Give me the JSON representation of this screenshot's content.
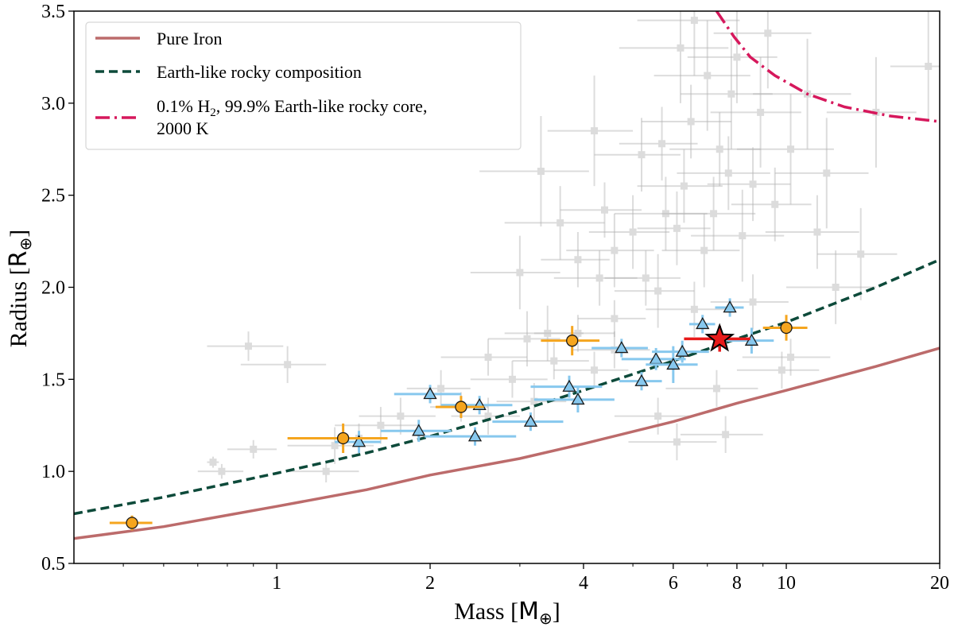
{
  "chart_data": {
    "type": "scatter",
    "title": "",
    "xlabel": "Mass",
    "xlabel_unit": "M",
    "ylabel": "Radius",
    "ylabel_unit": "R",
    "unit_symbol": "⊕",
    "xscale": "log",
    "xlim": [
      0.4,
      20
    ],
    "ylim": [
      0.5,
      3.5
    ],
    "x_ticks": [
      {
        "value": 1,
        "label": "1"
      },
      {
        "value": 2,
        "label": "2"
      },
      {
        "value": 4,
        "label": "4"
      },
      {
        "value": 6,
        "label": "6"
      },
      {
        "value": 8,
        "label": "8"
      },
      {
        "value": 10,
        "label": "10"
      },
      {
        "value": 20,
        "label": "20"
      }
    ],
    "y_ticks": [
      {
        "value": 0.5,
        "label": "0.5"
      },
      {
        "value": 1.0,
        "label": "1.0"
      },
      {
        "value": 1.5,
        "label": "1.5"
      },
      {
        "value": 2.0,
        "label": "2.0"
      },
      {
        "value": 2.5,
        "label": "2.5"
      },
      {
        "value": 3.0,
        "label": "3.0"
      },
      {
        "value": 3.5,
        "label": "3.5"
      }
    ],
    "legend": {
      "location": "upper-left",
      "entries": [
        {
          "label": "Pure Iron",
          "style": "solid",
          "color": "#bc6b6b"
        },
        {
          "label": "Earth-like rocky composition",
          "style": "dashed",
          "color": "#0d4a3a"
        },
        {
          "label": "0.1% H",
          "sub": "2",
          "label_rest": ", 99.9% Earth-like rocky core,",
          "label_line2": "2000 K",
          "style": "dashdot",
          "color": "#d6185c"
        }
      ]
    },
    "curves": {
      "pure_iron": {
        "color": "#bc6b6b",
        "x": [
          0.4,
          0.6,
          1,
          1.5,
          2,
          3,
          4,
          6,
          8,
          10,
          15,
          20
        ],
        "y": [
          0.635,
          0.7,
          0.81,
          0.9,
          0.98,
          1.07,
          1.15,
          1.27,
          1.37,
          1.44,
          1.57,
          1.67
        ]
      },
      "earth_like": {
        "color": "#0d4a3a",
        "x": [
          0.4,
          0.6,
          1,
          1.5,
          2,
          3,
          4,
          6,
          8,
          10,
          15,
          20
        ],
        "y": [
          0.77,
          0.86,
          0.99,
          1.1,
          1.19,
          1.33,
          1.44,
          1.6,
          1.72,
          1.81,
          2.0,
          2.15
        ]
      },
      "h2_envelope": {
        "color": "#d6185c",
        "x": [
          7.3,
          7.9,
          8.5,
          9.5,
          11,
          13,
          16,
          20
        ],
        "y": [
          3.5,
          3.36,
          3.25,
          3.15,
          3.05,
          2.98,
          2.93,
          2.9
        ]
      }
    },
    "background_planets": {
      "color": "#b3b3b3",
      "points": [
        [
          0.75,
          1.05,
          0.02,
          0.03
        ],
        [
          0.9,
          1.12,
          0.1,
          0.05
        ],
        [
          0.78,
          1.0,
          0.08,
          0.04
        ],
        [
          1.05,
          1.58,
          0.2,
          0.1
        ],
        [
          0.88,
          1.68,
          0.15,
          0.08
        ],
        [
          1.25,
          1.0,
          0.2,
          0.06
        ],
        [
          1.3,
          1.14,
          0.25,
          0.1
        ],
        [
          1.45,
          1.18,
          0.2,
          0.08
        ],
        [
          1.6,
          1.25,
          0.3,
          0.1
        ],
        [
          1.75,
          1.3,
          0.3,
          0.1
        ],
        [
          2.1,
          1.45,
          0.3,
          0.1
        ],
        [
          2.3,
          1.35,
          0.3,
          0.08
        ],
        [
          2.6,
          1.3,
          0.4,
          0.1
        ],
        [
          2.9,
          1.5,
          0.5,
          0.1
        ],
        [
          3.2,
          1.38,
          0.5,
          0.1
        ],
        [
          3.5,
          1.6,
          0.6,
          0.1
        ],
        [
          3.4,
          1.75,
          0.6,
          0.15
        ],
        [
          3.9,
          1.75,
          0.7,
          0.1
        ],
        [
          4.2,
          1.55,
          0.7,
          0.1
        ],
        [
          4.6,
          1.66,
          0.8,
          0.1
        ],
        [
          4.3,
          2.05,
          0.8,
          0.15
        ],
        [
          4.6,
          1.83,
          0.7,
          0.1
        ],
        [
          3.6,
          2.35,
          0.8,
          0.2
        ],
        [
          3.9,
          2.15,
          0.6,
          0.15
        ],
        [
          4.6,
          2.2,
          0.9,
          0.2
        ],
        [
          4.4,
          2.42,
          0.8,
          0.15
        ],
        [
          5.0,
          2.3,
          0.9,
          0.2
        ],
        [
          5.3,
          2.05,
          0.9,
          0.15
        ],
        [
          5.6,
          1.98,
          1.0,
          0.2
        ],
        [
          5.2,
          2.72,
          1.0,
          0.2
        ],
        [
          5.8,
          2.4,
          1.2,
          0.2
        ],
        [
          6.1,
          2.32,
          1.0,
          0.2
        ],
        [
          6.3,
          2.55,
          1.2,
          0.2
        ],
        [
          6.5,
          2.9,
          1.3,
          0.2
        ],
        [
          6.9,
          2.2,
          1.2,
          0.2
        ],
        [
          7.2,
          2.4,
          1.5,
          0.2
        ],
        [
          7.4,
          2.75,
          1.5,
          0.2
        ],
        [
          7.7,
          2.62,
          1.6,
          0.2
        ],
        [
          8.2,
          2.28,
          1.7,
          0.25
        ],
        [
          8.6,
          2.56,
          1.6,
          0.2
        ],
        [
          8.9,
          2.95,
          1.8,
          0.3
        ],
        [
          9.5,
          2.45,
          1.7,
          0.2
        ],
        [
          6.2,
          3.3,
          1.5,
          0.3
        ],
        [
          7.0,
          3.15,
          1.5,
          0.3
        ],
        [
          7.8,
          3.05,
          1.6,
          0.3
        ],
        [
          9.2,
          3.38,
          2.0,
          0.3
        ],
        [
          10.2,
          2.75,
          2.2,
          0.3
        ],
        [
          11.0,
          3.05,
          2.4,
          0.3
        ],
        [
          12.0,
          2.62,
          2.5,
          0.3
        ],
        [
          15.0,
          2.95,
          3.0,
          0.3
        ],
        [
          19.0,
          3.2,
          3.0,
          0.3
        ],
        [
          11.5,
          2.3,
          2.4,
          0.2
        ],
        [
          6.6,
          1.88,
          1.3,
          0.15
        ],
        [
          8.6,
          1.92,
          1.5,
          0.15
        ],
        [
          10.2,
          1.62,
          2.0,
          0.1
        ],
        [
          7.3,
          1.45,
          1.5,
          0.1
        ],
        [
          5.6,
          1.3,
          1.0,
          0.1
        ],
        [
          9.8,
          1.55,
          1.8,
          0.1
        ],
        [
          6.6,
          3.45,
          1.5,
          0.3
        ],
        [
          5.7,
          2.78,
          1.0,
          0.2
        ],
        [
          2.6,
          1.62,
          0.5,
          0.1
        ],
        [
          3.1,
          1.72,
          0.5,
          0.15
        ],
        [
          3.0,
          2.08,
          0.6,
          0.2
        ],
        [
          6.1,
          1.16,
          1.2,
          0.1
        ],
        [
          7.6,
          1.2,
          1.4,
          0.1
        ],
        [
          3.3,
          2.63,
          0.8,
          0.3
        ],
        [
          4.2,
          2.85,
          0.8,
          0.3
        ],
        [
          12.5,
          2.0,
          2.5,
          0.2
        ],
        [
          14.0,
          2.18,
          2.5,
          0.25
        ],
        [
          8.0,
          3.25,
          1.6,
          0.25
        ]
      ]
    },
    "sample_a_circles": {
      "color": "#f5a51e",
      "points": [
        [
          0.52,
          0.72,
          0.05,
          0.04
        ],
        [
          1.35,
          1.18,
          0.3,
          0.08
        ],
        [
          2.3,
          1.35,
          0.25,
          0.06
        ],
        [
          3.8,
          1.71,
          0.5,
          0.08
        ],
        [
          10.0,
          1.78,
          1.0,
          0.07
        ]
      ]
    },
    "sample_b_triangles": {
      "color": "#87c8ee",
      "points": [
        [
          1.45,
          1.16,
          0.15,
          0.06
        ],
        [
          1.9,
          1.22,
          0.3,
          0.06
        ],
        [
          2.0,
          1.42,
          0.3,
          0.05
        ],
        [
          2.5,
          1.36,
          0.4,
          0.05
        ],
        [
          2.45,
          1.19,
          0.5,
          0.05
        ],
        [
          3.15,
          1.27,
          0.5,
          0.05
        ],
        [
          3.75,
          1.46,
          0.6,
          0.06
        ],
        [
          3.9,
          1.39,
          0.7,
          0.07
        ],
        [
          4.75,
          1.67,
          0.6,
          0.05
        ],
        [
          5.2,
          1.49,
          0.5,
          0.05
        ],
        [
          5.55,
          1.61,
          0.8,
          0.06
        ],
        [
          6.0,
          1.58,
          0.7,
          0.1
        ],
        [
          6.25,
          1.65,
          0.8,
          0.06
        ],
        [
          6.85,
          1.8,
          0.4,
          0.05
        ],
        [
          7.75,
          1.89,
          0.5,
          0.05
        ],
        [
          8.55,
          1.71,
          0.9,
          0.07
        ]
      ]
    },
    "target_planet": {
      "label": "",
      "color": "#e81a1a",
      "x": 7.4,
      "y": 1.72,
      "xerr": 1.1,
      "yerr": 0.07
    }
  }
}
